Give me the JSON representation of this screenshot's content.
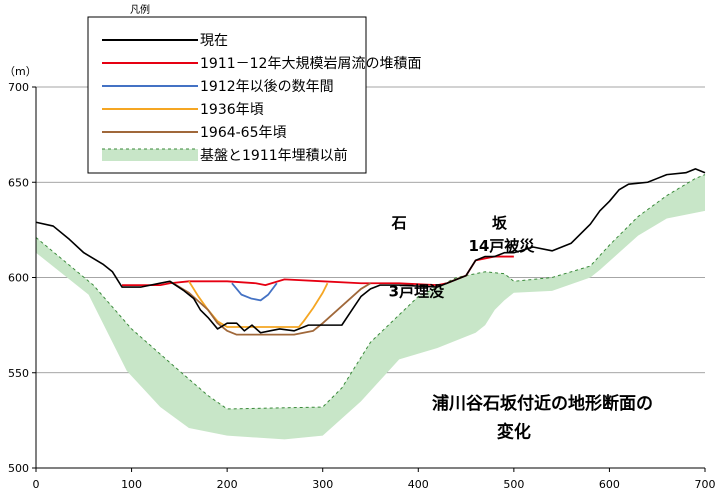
{
  "chart_data": {
    "type": "line",
    "unit_label": "（m）",
    "legend_title": "凡例",
    "xlim": [
      0,
      700
    ],
    "ylim": [
      500,
      700
    ],
    "x_ticks": [
      0,
      100,
      200,
      300,
      400,
      500,
      600,
      700
    ],
    "y_ticks": [
      500,
      550,
      600,
      650,
      700
    ],
    "grid": "horizontal",
    "legend_position": "top-left",
    "annotations": [
      {
        "text": "石",
        "x": 380,
        "y": 626
      },
      {
        "text": "坂",
        "x": 485,
        "y": 626
      },
      {
        "text": "14戸被災",
        "x": 487,
        "y": 614
      },
      {
        "text": "3戸埋没",
        "x": 398,
        "y": 590
      },
      {
        "text": "浦川谷石坂付近の地形断面の",
        "x": 530,
        "y": 531
      },
      {
        "text": "変化",
        "x": 500,
        "y": 516
      }
    ],
    "bedrock_band": {
      "name": "基盤と1911年埋積以前",
      "color": "#c8e6c8",
      "upper": [
        [
          0,
          621
        ],
        [
          60,
          596
        ],
        [
          100,
          573
        ],
        [
          150,
          551
        ],
        [
          180,
          538
        ],
        [
          200,
          531
        ],
        [
          300,
          532
        ],
        [
          320,
          542
        ],
        [
          350,
          566
        ],
        [
          400,
          590
        ],
        [
          440,
          600
        ],
        [
          470,
          603
        ],
        [
          490,
          602
        ],
        [
          500,
          598
        ],
        [
          540,
          600
        ],
        [
          580,
          606
        ],
        [
          600,
          617
        ],
        [
          630,
          632
        ],
        [
          660,
          643
        ],
        [
          690,
          652
        ],
        [
          700,
          654
        ]
      ],
      "lower": [
        [
          0,
          613
        ],
        [
          55,
          591
        ],
        [
          95,
          551
        ],
        [
          130,
          532
        ],
        [
          160,
          521
        ],
        [
          200,
          517
        ],
        [
          260,
          515
        ],
        [
          300,
          517
        ],
        [
          340,
          535
        ],
        [
          380,
          557
        ],
        [
          420,
          563
        ],
        [
          460,
          571
        ],
        [
          470,
          575
        ],
        [
          480,
          583
        ],
        [
          490,
          588
        ],
        [
          500,
          592
        ],
        [
          540,
          593
        ],
        [
          580,
          600
        ],
        [
          590,
          604
        ],
        [
          630,
          622
        ],
        [
          660,
          631
        ],
        [
          700,
          635
        ]
      ]
    },
    "series": [
      {
        "name": "現在",
        "color": "#000000",
        "points": [
          [
            0,
            629
          ],
          [
            18,
            627
          ],
          [
            35,
            620
          ],
          [
            50,
            613
          ],
          [
            70,
            607
          ],
          [
            80,
            603
          ],
          [
            90,
            595
          ],
          [
            110,
            595
          ],
          [
            130,
            597
          ],
          [
            140,
            598
          ],
          [
            155,
            593
          ],
          [
            165,
            589
          ],
          [
            172,
            583
          ],
          [
            180,
            579
          ],
          [
            190,
            573
          ],
          [
            200,
            576
          ],
          [
            210,
            576
          ],
          [
            218,
            572
          ],
          [
            226,
            575
          ],
          [
            235,
            571
          ],
          [
            245,
            572
          ],
          [
            255,
            573
          ],
          [
            270,
            572
          ],
          [
            285,
            575
          ],
          [
            300,
            575
          ],
          [
            320,
            575
          ],
          [
            332,
            584
          ],
          [
            340,
            590
          ],
          [
            350,
            594
          ],
          [
            360,
            596
          ],
          [
            380,
            596
          ],
          [
            420,
            595
          ],
          [
            430,
            597
          ],
          [
            450,
            601
          ],
          [
            460,
            609
          ],
          [
            470,
            611
          ],
          [
            480,
            611
          ],
          [
            490,
            613
          ],
          [
            500,
            613
          ],
          [
            520,
            616
          ],
          [
            540,
            614
          ],
          [
            560,
            618
          ],
          [
            580,
            628
          ],
          [
            590,
            635
          ],
          [
            600,
            640
          ],
          [
            610,
            646
          ],
          [
            620,
            649
          ],
          [
            640,
            650
          ],
          [
            650,
            652
          ],
          [
            660,
            654
          ],
          [
            680,
            655
          ],
          [
            690,
            657
          ],
          [
            700,
            655
          ]
        ]
      },
      {
        "name": "1911－12年大規模岩屑流の堆積面",
        "color": "#e60012",
        "points": [
          [
            90,
            596
          ],
          [
            100,
            596
          ],
          [
            130,
            596
          ],
          [
            140,
            597
          ],
          [
            160,
            598
          ],
          [
            200,
            598
          ],
          [
            230,
            597
          ],
          [
            240,
            596
          ],
          [
            260,
            599
          ],
          [
            300,
            598
          ],
          [
            340,
            597
          ],
          [
            360,
            597
          ],
          [
            380,
            597
          ],
          [
            420,
            596
          ],
          [
            430,
            597
          ],
          [
            450,
            601
          ],
          [
            460,
            609
          ],
          [
            480,
            611
          ],
          [
            500,
            611
          ]
        ]
      },
      {
        "name": "1912年以後の数年間",
        "color": "#4472c4",
        "points": [
          [
            205,
            597
          ],
          [
            215,
            591
          ],
          [
            225,
            589
          ],
          [
            235,
            588
          ],
          [
            243,
            591
          ],
          [
            252,
            597
          ]
        ]
      },
      {
        "name": "1936年頃",
        "color": "#f5a623",
        "points": [
          [
            160,
            598
          ],
          [
            170,
            590
          ],
          [
            180,
            583
          ],
          [
            190,
            577
          ],
          [
            200,
            574
          ],
          [
            230,
            574
          ],
          [
            275,
            574
          ],
          [
            280,
            577
          ],
          [
            290,
            584
          ],
          [
            300,
            592
          ],
          [
            305,
            597
          ]
        ]
      },
      {
        "name": "1964-65年頃",
        "color": "#a0683a",
        "points": [
          [
            140,
            598
          ],
          [
            160,
            592
          ],
          [
            180,
            583
          ],
          [
            190,
            576
          ],
          [
            200,
            572
          ],
          [
            210,
            570
          ],
          [
            240,
            570
          ],
          [
            270,
            570
          ],
          [
            290,
            572
          ],
          [
            300,
            576
          ],
          [
            320,
            585
          ],
          [
            340,
            594
          ],
          [
            350,
            597
          ]
        ]
      }
    ],
    "legend": [
      {
        "label": "現在",
        "color": "#000000",
        "style": "line"
      },
      {
        "label": "1911－12年大規模岩屑流の堆積面",
        "color": "#e60012",
        "style": "line"
      },
      {
        "label": "1912年以後の数年間",
        "color": "#4472c4",
        "style": "line"
      },
      {
        "label": "1936年頃",
        "color": "#f5a623",
        "style": "line"
      },
      {
        "label": "1964-65年頃",
        "color": "#a0683a",
        "style": "line"
      },
      {
        "label": "基盤と1911年埋積以前",
        "color": "#c8e6c8",
        "style": "band"
      }
    ]
  }
}
